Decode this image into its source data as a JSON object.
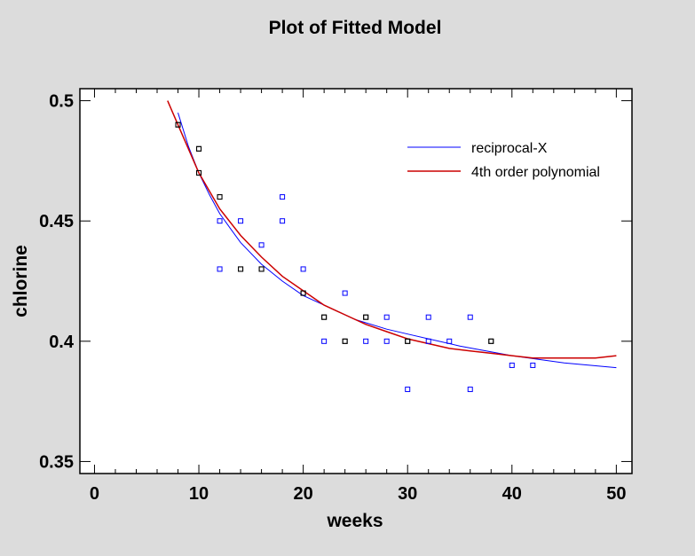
{
  "chart_data": {
    "type": "scatter",
    "title": "Plot of Fitted Model",
    "xlabel": "weeks",
    "ylabel": "chlorine",
    "xlim": [
      -1.4,
      51.5
    ],
    "ylim": [
      0.345,
      0.505
    ],
    "xticks": [
      0,
      10,
      20,
      30,
      40,
      50
    ],
    "xtick_labels": [
      "0",
      "10",
      "20",
      "30",
      "40",
      "50"
    ],
    "yticks": [
      0.35,
      0.4,
      0.45,
      0.5
    ],
    "ytick_labels": [
      "0.35",
      "0.4",
      "0.45",
      "0.5"
    ],
    "grid": false,
    "legend_position": "top-right",
    "points": {
      "x": [
        8,
        8,
        10,
        10,
        10,
        10,
        12,
        12,
        12,
        12,
        14,
        14,
        14,
        16,
        16,
        16,
        18,
        18,
        20,
        20,
        20,
        22,
        22,
        22,
        24,
        24,
        24,
        26,
        26,
        26,
        28,
        28,
        30,
        30,
        30,
        32,
        32,
        34,
        36,
        36,
        38,
        38,
        40,
        42
      ],
      "y": [
        0.49,
        0.49,
        0.48,
        0.47,
        0.48,
        0.47,
        0.46,
        0.46,
        0.45,
        0.43,
        0.45,
        0.43,
        0.43,
        0.44,
        0.43,
        0.43,
        0.46,
        0.45,
        0.42,
        0.42,
        0.43,
        0.41,
        0.41,
        0.4,
        0.42,
        0.4,
        0.4,
        0.41,
        0.4,
        0.41,
        0.41,
        0.4,
        0.4,
        0.4,
        0.38,
        0.41,
        0.4,
        0.4,
        0.41,
        0.38,
        0.4,
        0.4,
        0.39,
        0.39
      ],
      "color": "#0000ff",
      "overlap_color": "#000000"
    },
    "series": [
      {
        "name": "reciprocal-X",
        "color": "#0000ff",
        "x": [
          8,
          9,
          10,
          11,
          12,
          13,
          14,
          16,
          18,
          20,
          22,
          25,
          28,
          30,
          35,
          40,
          45,
          50
        ],
        "y": [
          0.495,
          0.481,
          0.47,
          0.461,
          0.453,
          0.447,
          0.441,
          0.432,
          0.425,
          0.419,
          0.415,
          0.409,
          0.405,
          0.403,
          0.398,
          0.394,
          0.391,
          0.389
        ]
      },
      {
        "name": "4th order polynomial",
        "color": "#cc0000",
        "x": [
          7,
          8,
          10,
          12,
          14,
          16,
          18,
          20,
          22,
          24,
          26,
          28,
          30,
          32,
          34,
          36,
          38,
          40,
          42,
          44,
          46,
          48,
          50
        ],
        "y": [
          0.5,
          0.49,
          0.47,
          0.455,
          0.444,
          0.435,
          0.427,
          0.421,
          0.415,
          0.411,
          0.407,
          0.404,
          0.401,
          0.399,
          0.397,
          0.396,
          0.395,
          0.394,
          0.393,
          0.393,
          0.393,
          0.393,
          0.394
        ]
      }
    ]
  }
}
